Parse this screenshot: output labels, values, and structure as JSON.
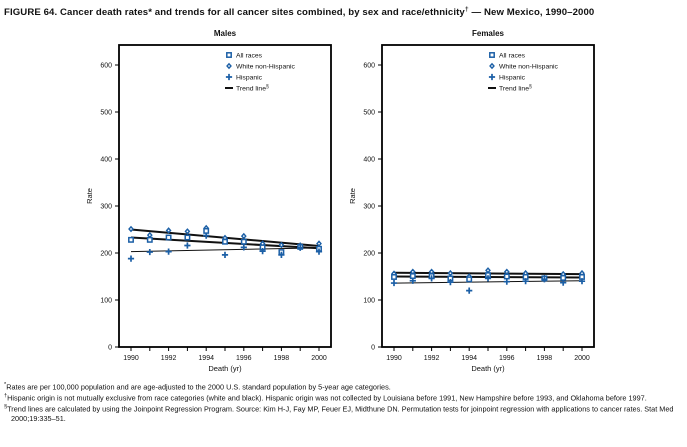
{
  "title": {
    "main": "FIGURE 64. Cancer death rates* and trends for all cancer sites combined, by sex and race/ethnicity",
    "sup": "†",
    "tail": " — New Mexico, 1990–2000"
  },
  "colors": {
    "marker_blue": "#1b5fa6",
    "trend_black": "#111111",
    "axis_black": "#000000"
  },
  "legend": {
    "position": "top-right-inside",
    "items": [
      {
        "label": "All races",
        "marker": "square"
      },
      {
        "label": "White non-Hispanic",
        "marker": "diamond"
      },
      {
        "label": "Hispanic",
        "marker": "plus"
      },
      {
        "label": "Trend line",
        "sup": "§",
        "marker": "dash"
      }
    ]
  },
  "chart_data": [
    {
      "type": "scatter",
      "title": "Males",
      "xlabel": "Death (yr)",
      "ylabel": "Rate",
      "grid": false,
      "ylim": [
        0,
        600
      ],
      "yticks": [
        0,
        100,
        200,
        300,
        400,
        500,
        600
      ],
      "xrange": [
        1990,
        2000
      ],
      "xticks_labeled": [
        1990,
        1992,
        1994,
        1996,
        1998,
        2000
      ],
      "x": [
        1990,
        1991,
        1992,
        1993,
        1994,
        1995,
        1996,
        1997,
        1998,
        1999,
        2000
      ],
      "series": [
        {
          "name": "White non-Hispanic",
          "marker": "diamond",
          "values": [
            251,
            238,
            248,
            246,
            253,
            232,
            236,
            220,
            217,
            216,
            220
          ]
        },
        {
          "name": "All races",
          "marker": "square",
          "values": [
            228,
            228,
            233,
            233,
            247,
            224,
            224,
            212,
            202,
            213,
            209
          ]
        },
        {
          "name": "Hispanic",
          "marker": "plus",
          "values": [
            188,
            202,
            203,
            216,
            237,
            196,
            212,
            204,
            196,
            211,
            203
          ]
        }
      ],
      "trend_lines": [
        {
          "series": "White non-Hispanic",
          "start": 250,
          "end": 215,
          "width": 2
        },
        {
          "series": "All races",
          "start": 233,
          "end": 210,
          "width": 2
        },
        {
          "series": "Hispanic",
          "start": 203,
          "end": 211,
          "width": 1
        }
      ]
    },
    {
      "type": "scatter",
      "title": "Females",
      "xlabel": "Death (yr)",
      "ylabel": "Rate",
      "grid": false,
      "ylim": [
        0,
        600
      ],
      "yticks": [
        0,
        100,
        200,
        300,
        400,
        500,
        600
      ],
      "xrange": [
        1990,
        2000
      ],
      "xticks_labeled": [
        1990,
        1992,
        1994,
        1996,
        1998,
        2000
      ],
      "x": [
        1990,
        1991,
        1992,
        1993,
        1994,
        1995,
        1996,
        1997,
        1998,
        1999,
        2000
      ],
      "series": [
        {
          "name": "White non-Hispanic",
          "marker": "diamond",
          "values": [
            156,
            160,
            160,
            157,
            150,
            163,
            160,
            157,
            147,
            155,
            157
          ]
        },
        {
          "name": "All races",
          "marker": "square",
          "values": [
            149,
            151,
            151,
            146,
            144,
            153,
            150,
            149,
            146,
            147,
            149
          ]
        },
        {
          "name": "Hispanic",
          "marker": "plus",
          "values": [
            136,
            141,
            146,
            138,
            120,
            146,
            139,
            140,
            144,
            137,
            140
          ]
        }
      ],
      "trend_lines": [
        {
          "series": "White non-Hispanic",
          "start": 158,
          "end": 155,
          "width": 2
        },
        {
          "series": "All races",
          "start": 150,
          "end": 148,
          "width": 2
        },
        {
          "series": "Hispanic",
          "start": 136,
          "end": 141,
          "width": 1
        }
      ]
    }
  ],
  "footnotes": [
    {
      "sup": "*",
      "text": "Rates are per 100,000 population and are age-adjusted to the 2000 U.S. standard population by 5-year age categories."
    },
    {
      "sup": "†",
      "text": "Hispanic origin is not mutually exclusive from race categories (white and black). Hispanic origin was not collected by Louisiana before 1991, New Hampshire before 1993, and Oklahoma before 1997."
    },
    {
      "sup": "§",
      "text": "Trend lines are calculated by using the Joinpoint Regression Program. Source: Kim H-J, Fay MP, Feuer EJ, Midthune DN. Permutation tests for joinpoint regression with applications to cancer rates. Stat Med 2000;19:335–51."
    }
  ]
}
